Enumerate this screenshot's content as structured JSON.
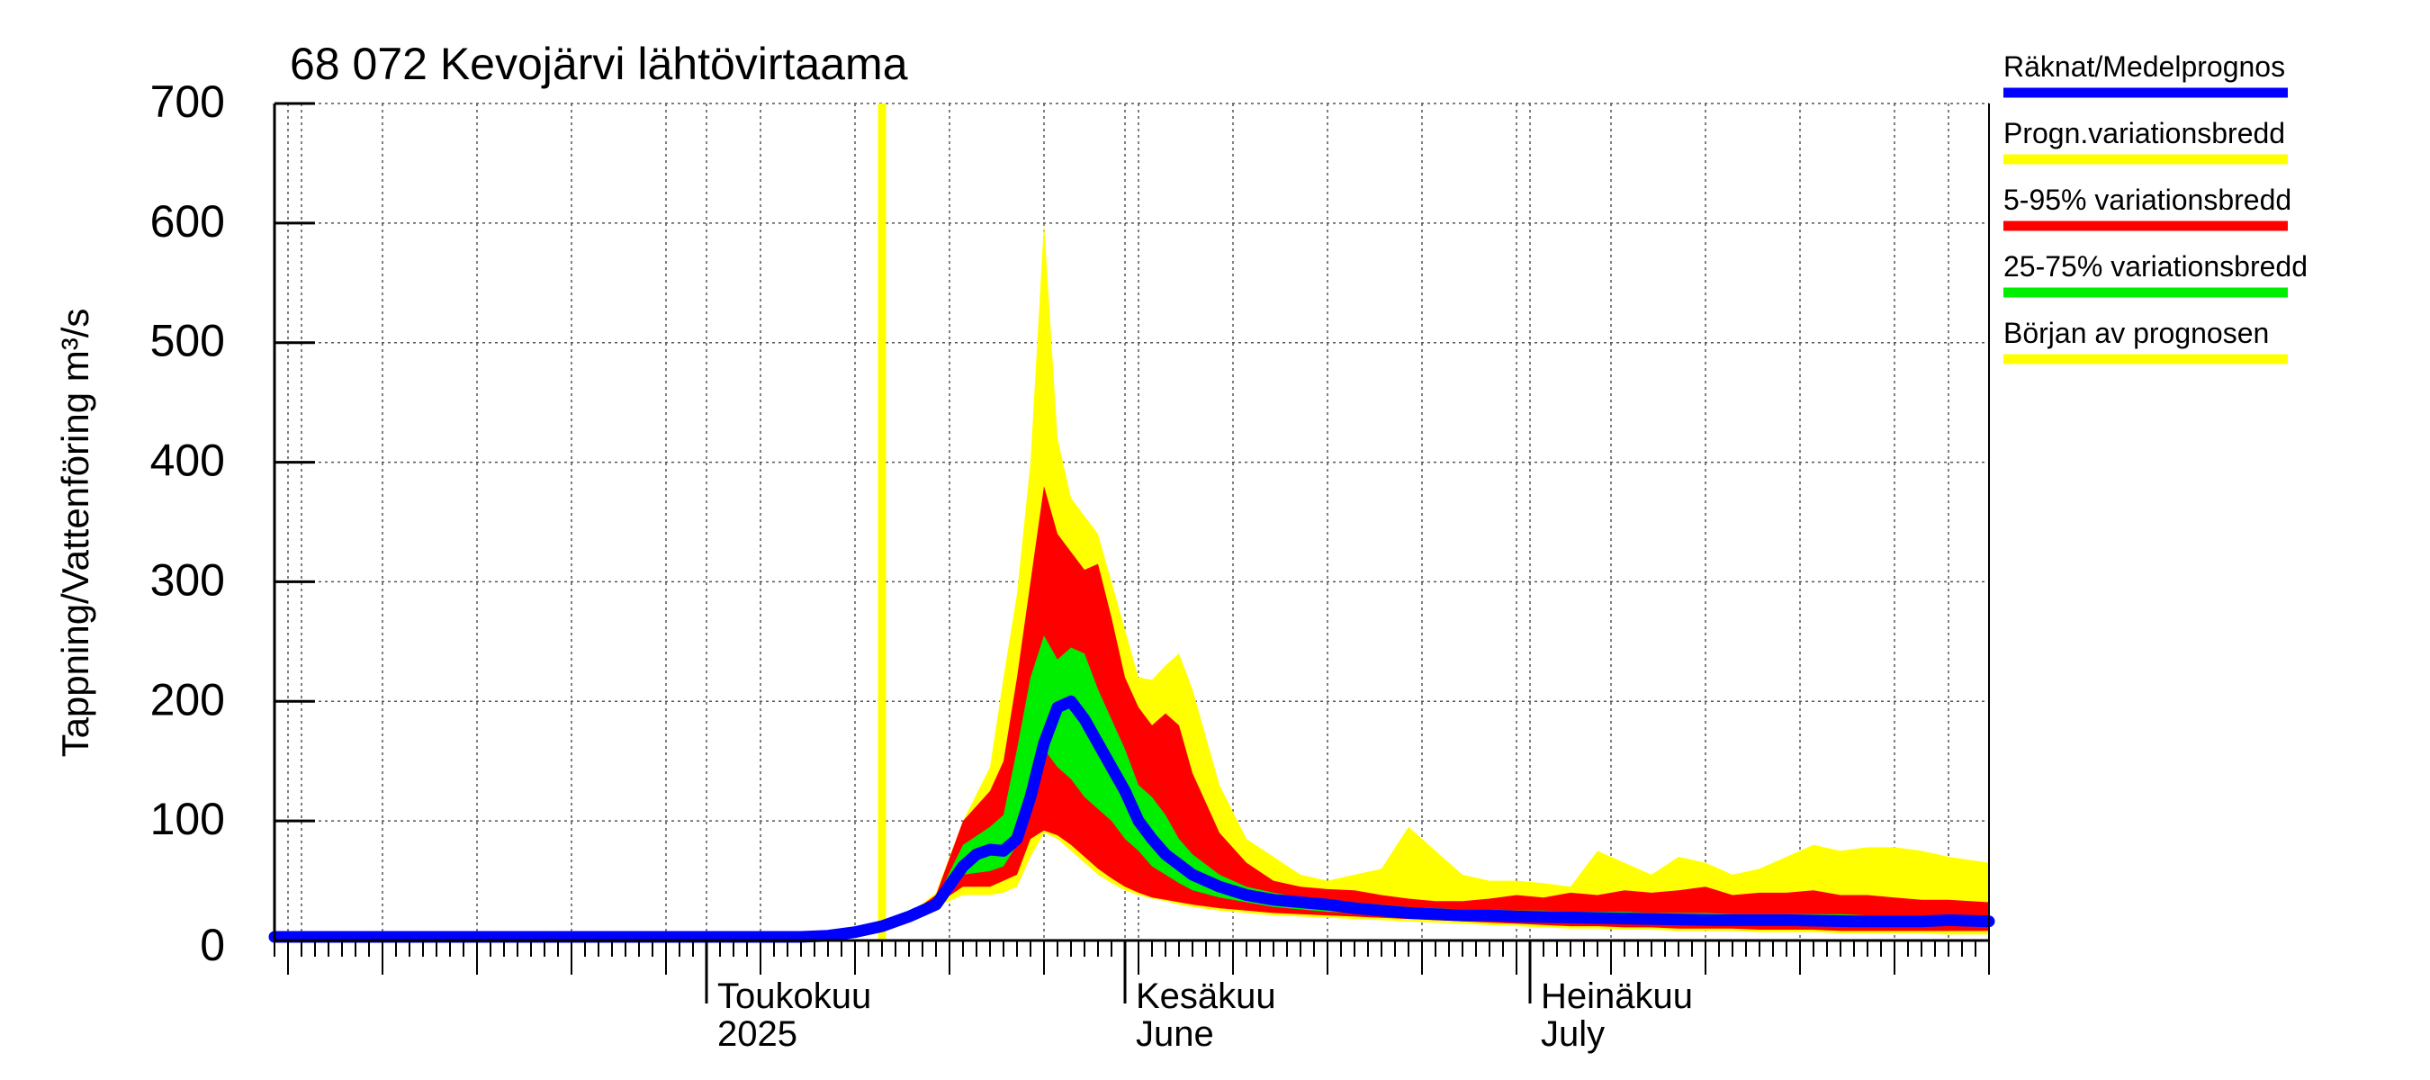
{
  "chart_data": {
    "type": "area",
    "title": "68 072 Kevojärvi lähtövirtaama",
    "ylabel": "Tappning/Vattenföring m³/s",
    "ylim": [
      0,
      700
    ],
    "yticks": [
      0,
      100,
      200,
      300,
      400,
      500,
      600,
      700
    ],
    "xlim": [
      "2025-03-30",
      "2025-08-04"
    ],
    "forecast_start": "2025-05-14",
    "month_labels": [
      {
        "date": "2025-05-01",
        "line1": "Toukokuu",
        "line2": "2025"
      },
      {
        "date": "2025-06-01",
        "line1": "Kesäkuu",
        "line2": "June"
      },
      {
        "date": "2025-07-01",
        "line1": "Heinäkuu",
        "line2": "July"
      }
    ],
    "grid": true,
    "legend_position": "right",
    "legend": [
      {
        "label": "Räknat/Medelprognos",
        "color": "#0000ff"
      },
      {
        "label": "Progn.variationsbredd",
        "color": "#ffff00"
      },
      {
        "label": "5-95% variationsbredd",
        "color": "#ff0000"
      },
      {
        "label": "25-75% variationsbredd",
        "color": "#00ee00"
      },
      {
        "label": "Början av prognosen",
        "color": "#ffff00"
      }
    ],
    "bands": {
      "x": [
        "2025-05-14",
        "2025-05-16",
        "2025-05-18",
        "2025-05-20",
        "2025-05-22",
        "2025-05-23",
        "2025-05-24",
        "2025-05-25",
        "2025-05-26",
        "2025-05-27",
        "2025-05-28",
        "2025-05-29",
        "2025-05-30",
        "2025-05-31",
        "2025-06-01",
        "2025-06-02",
        "2025-06-03",
        "2025-06-04",
        "2025-06-05",
        "2025-06-06",
        "2025-06-08",
        "2025-06-10",
        "2025-06-12",
        "2025-06-14",
        "2025-06-16",
        "2025-06-18",
        "2025-06-20",
        "2025-06-22",
        "2025-06-24",
        "2025-06-26",
        "2025-06-28",
        "2025-06-30",
        "2025-07-02",
        "2025-07-04",
        "2025-07-06",
        "2025-07-08",
        "2025-07-10",
        "2025-07-12",
        "2025-07-14",
        "2025-07-16",
        "2025-07-18",
        "2025-07-20",
        "2025-07-22",
        "2025-07-24",
        "2025-07-26",
        "2025-07-28",
        "2025-07-30",
        "2025-08-01",
        "2025-08-04"
      ],
      "prog_min": [
        12,
        20,
        28,
        38,
        38,
        40,
        45,
        70,
        90,
        85,
        75,
        65,
        55,
        48,
        42,
        38,
        35,
        33,
        30,
        28,
        25,
        23,
        21,
        20,
        19,
        18,
        17,
        16,
        15,
        14,
        13,
        12,
        11,
        10,
        10,
        9,
        9,
        8,
        8,
        8,
        7,
        7,
        7,
        6,
        6,
        6,
        6,
        5,
        5
      ],
      "prog_max": [
        12,
        22,
        40,
        100,
        145,
        220,
        290,
        400,
        600,
        420,
        370,
        355,
        340,
        300,
        260,
        220,
        218,
        230,
        240,
        210,
        130,
        85,
        70,
        55,
        50,
        55,
        60,
        95,
        75,
        55,
        50,
        50,
        48,
        45,
        75,
        65,
        55,
        70,
        65,
        55,
        60,
        70,
        80,
        75,
        78,
        78,
        75,
        70,
        65
      ],
      "p5": [
        12,
        21,
        30,
        45,
        45,
        50,
        55,
        85,
        92,
        88,
        80,
        70,
        60,
        52,
        45,
        40,
        36,
        34,
        32,
        30,
        27,
        25,
        23,
        22,
        21,
        20,
        19,
        18,
        17,
        16,
        15,
        14,
        13,
        12,
        12,
        11,
        11,
        10,
        10,
        10,
        9,
        9,
        9,
        8,
        8,
        8,
        8,
        8,
        8
      ],
      "p95": [
        12,
        22,
        38,
        100,
        125,
        150,
        220,
        300,
        380,
        340,
        325,
        310,
        315,
        270,
        220,
        195,
        180,
        190,
        180,
        140,
        90,
        65,
        50,
        45,
        43,
        42,
        38,
        35,
        33,
        33,
        35,
        38,
        36,
        40,
        38,
        42,
        40,
        42,
        45,
        38,
        40,
        40,
        42,
        38,
        38,
        36,
        34,
        34,
        32
      ],
      "p25": [
        12,
        21,
        32,
        55,
        58,
        62,
        80,
        130,
        160,
        145,
        135,
        120,
        110,
        100,
        85,
        75,
        62,
        55,
        48,
        42,
        36,
        32,
        28,
        26,
        24,
        23,
        22,
        21,
        20,
        20,
        19,
        19,
        18,
        18,
        17,
        17,
        17,
        16,
        16,
        16,
        15,
        15,
        15,
        15,
        14,
        14,
        14,
        14,
        14
      ],
      "p75": [
        12,
        22,
        34,
        80,
        95,
        105,
        160,
        220,
        255,
        235,
        245,
        240,
        210,
        185,
        160,
        130,
        120,
        105,
        85,
        72,
        55,
        45,
        40,
        36,
        34,
        32,
        30,
        28,
        27,
        26,
        26,
        25,
        25,
        24,
        24,
        24,
        23,
        23,
        23,
        22,
        22,
        22,
        22,
        22,
        21,
        21,
        21,
        21,
        20
      ]
    },
    "series": [
      {
        "name": "Räknat/Medelprognos",
        "x": [
          "2025-03-30",
          "2025-05-05",
          "2025-05-08",
          "2025-05-10",
          "2025-05-12",
          "2025-05-14",
          "2025-05-16",
          "2025-05-18",
          "2025-05-20",
          "2025-05-21",
          "2025-05-22",
          "2025-05-23",
          "2025-05-24",
          "2025-05-25",
          "2025-05-26",
          "2025-05-27",
          "2025-05-28",
          "2025-05-29",
          "2025-05-30",
          "2025-05-31",
          "2025-06-01",
          "2025-06-02",
          "2025-06-03",
          "2025-06-04",
          "2025-06-06",
          "2025-06-08",
          "2025-06-10",
          "2025-06-12",
          "2025-06-14",
          "2025-06-16",
          "2025-06-18",
          "2025-06-20",
          "2025-06-22",
          "2025-06-24",
          "2025-06-26",
          "2025-06-28",
          "2025-06-30",
          "2025-07-05",
          "2025-07-10",
          "2025-07-15",
          "2025-07-20",
          "2025-07-25",
          "2025-07-30",
          "2025-08-01",
          "2025-08-04"
        ],
        "y": [
          3,
          3,
          3,
          4,
          7,
          12,
          20,
          30,
          62,
          72,
          76,
          75,
          85,
          120,
          165,
          195,
          200,
          185,
          165,
          145,
          125,
          100,
          85,
          72,
          55,
          45,
          38,
          34,
          32,
          30,
          27,
          25,
          23,
          22,
          21,
          21,
          20,
          19,
          18,
          17,
          17,
          16,
          16,
          17,
          16
        ]
      }
    ]
  }
}
